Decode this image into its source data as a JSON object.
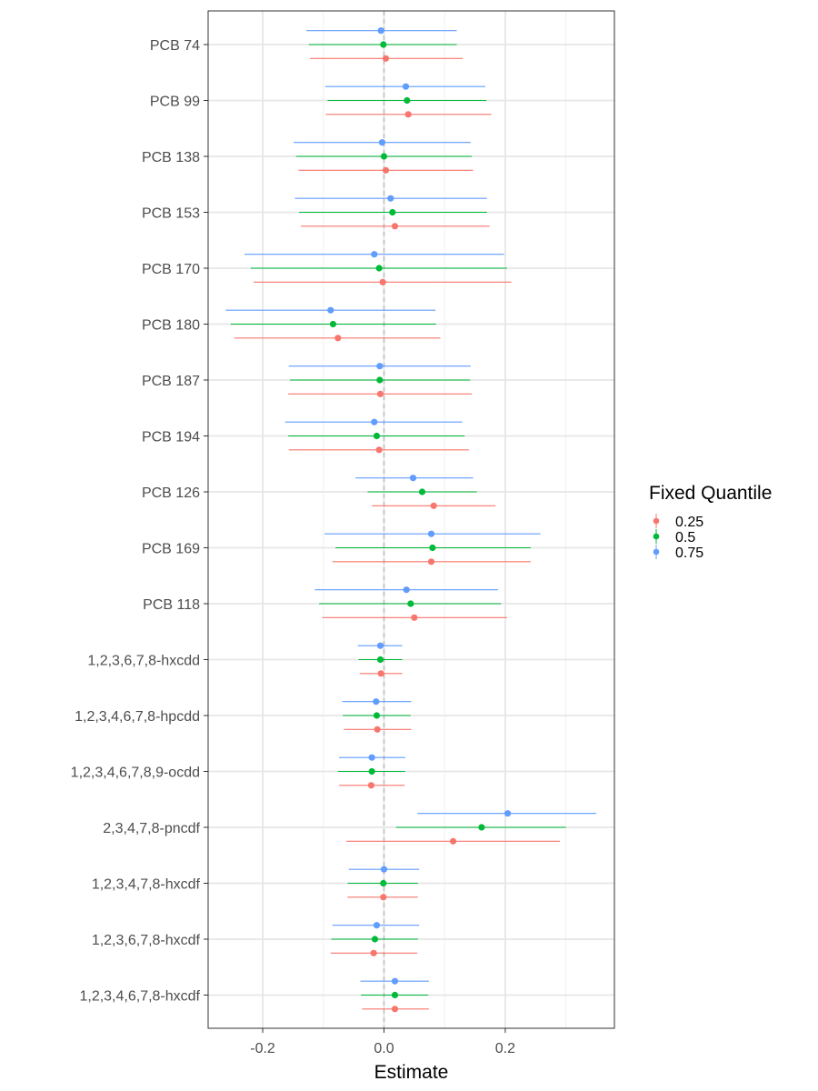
{
  "chart_data": {
    "type": "forest",
    "xlabel": "Estimate",
    "xlim": [
      -0.29,
      0.38
    ],
    "xticks": [
      -0.2,
      0.0,
      0.2
    ],
    "xtick_labels": [
      "-0.2",
      "0.0",
      "0.2"
    ],
    "reference_line": 0,
    "grid": true,
    "legend": {
      "title": "Fixed Quantile",
      "position": "right",
      "entries": [
        "0.25",
        "0.5",
        "0.75"
      ]
    },
    "colors": {
      "0.25": "#F8766D",
      "0.5": "#00BA38",
      "0.75": "#619CFF"
    },
    "categories": [
      "PCB 74",
      "PCB 99",
      "PCB 138",
      "PCB 153",
      "PCB 170",
      "PCB 180",
      "PCB 187",
      "PCB 194",
      "PCB 126",
      "PCB 169",
      "PCB 118",
      "1,2,3,6,7,8-hxcdd",
      "1,2,3,4,6,7,8-hpcdd",
      "1,2,3,4,6,7,8,9-ocdd",
      "2,3,4,7,8-pncdf",
      "1,2,3,4,7,8-hxcdf",
      "1,2,3,6,7,8-hxcdf",
      "1,2,3,4,6,7,8-hxcdf"
    ],
    "series": [
      {
        "name": "0.25",
        "estimate": [
          0.003,
          0.04,
          0.003,
          0.018,
          -0.002,
          -0.076,
          -0.006,
          -0.008,
          0.082,
          0.078,
          0.05,
          -0.005,
          -0.011,
          -0.021,
          0.114,
          -0.001,
          -0.017,
          0.018
        ],
        "lower": [
          -0.122,
          -0.096,
          -0.141,
          -0.137,
          -0.215,
          -0.247,
          -0.158,
          -0.157,
          -0.02,
          -0.085,
          -0.102,
          -0.04,
          -0.066,
          -0.074,
          -0.062,
          -0.06,
          -0.088,
          -0.036
        ],
        "upper": [
          0.13,
          0.177,
          0.147,
          0.174,
          0.21,
          0.093,
          0.145,
          0.14,
          0.184,
          0.242,
          0.203,
          0.03,
          0.045,
          0.034,
          0.29,
          0.056,
          0.055,
          0.074
        ]
      },
      {
        "name": "0.5",
        "estimate": [
          -0.001,
          0.038,
          0.0,
          0.014,
          -0.008,
          -0.084,
          -0.007,
          -0.012,
          0.063,
          0.08,
          0.044,
          -0.006,
          -0.012,
          -0.02,
          0.161,
          -0.001,
          -0.015,
          0.018
        ],
        "lower": [
          -0.124,
          -0.093,
          -0.145,
          -0.14,
          -0.22,
          -0.253,
          -0.155,
          -0.158,
          -0.027,
          -0.08,
          -0.107,
          -0.042,
          -0.068,
          -0.076,
          0.02,
          -0.06,
          -0.087,
          -0.038
        ],
        "upper": [
          0.12,
          0.169,
          0.145,
          0.17,
          0.203,
          0.086,
          0.142,
          0.133,
          0.153,
          0.242,
          0.193,
          0.03,
          0.044,
          0.035,
          0.3,
          0.056,
          0.056,
          0.073
        ]
      },
      {
        "name": "0.75",
        "estimate": [
          -0.005,
          0.036,
          -0.003,
          0.011,
          -0.016,
          -0.088,
          -0.007,
          -0.016,
          0.048,
          0.078,
          0.037,
          -0.006,
          -0.013,
          -0.02,
          0.204,
          0.0,
          -0.012,
          0.018
        ],
        "lower": [
          -0.128,
          -0.097,
          -0.149,
          -0.147,
          -0.23,
          -0.261,
          -0.157,
          -0.163,
          -0.047,
          -0.098,
          -0.114,
          -0.043,
          -0.069,
          -0.074,
          0.055,
          -0.058,
          -0.085,
          -0.039
        ],
        "upper": [
          0.12,
          0.167,
          0.143,
          0.17,
          0.198,
          0.085,
          0.143,
          0.129,
          0.147,
          0.258,
          0.188,
          0.03,
          0.045,
          0.035,
          0.35,
          0.058,
          0.058,
          0.074
        ]
      }
    ]
  }
}
